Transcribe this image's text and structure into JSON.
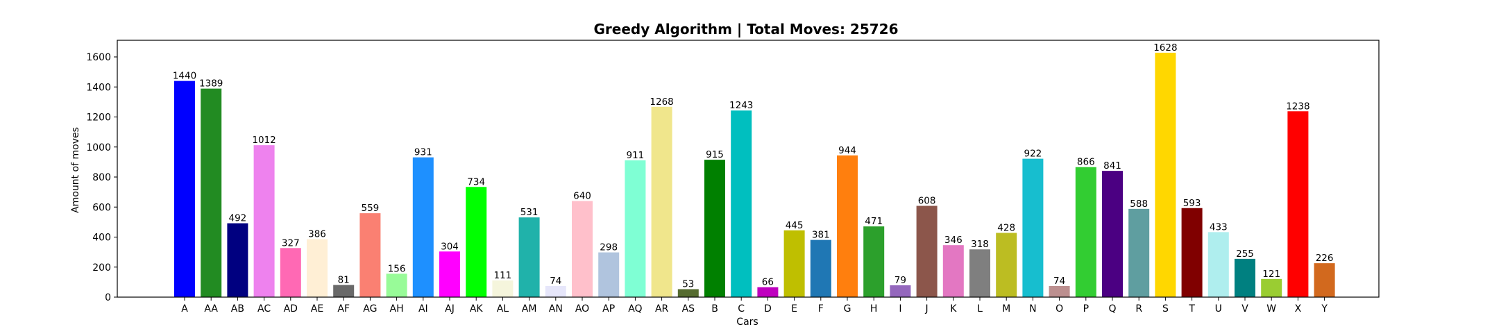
{
  "chart_data": {
    "type": "bar",
    "title": "Greedy Algorithm | Total Moves: 25726",
    "xlabel": "Cars",
    "ylabel": "Amount of moves",
    "ylim": [
      0,
      1700
    ],
    "yticks": [
      0,
      200,
      400,
      600,
      800,
      1000,
      1200,
      1400,
      1600
    ],
    "grid": false,
    "legend": "none",
    "categories": [
      "A",
      "AA",
      "AB",
      "AC",
      "AD",
      "AE",
      "AF",
      "AG",
      "AH",
      "AI",
      "AJ",
      "AK",
      "AL",
      "AM",
      "AN",
      "AO",
      "AP",
      "AQ",
      "AR",
      "AS",
      "B",
      "C",
      "D",
      "E",
      "F",
      "G",
      "H",
      "I",
      "J",
      "K",
      "L",
      "M",
      "N",
      "O",
      "P",
      "Q",
      "R",
      "S",
      "T",
      "U",
      "V",
      "W",
      "X",
      "Y"
    ],
    "values": [
      1440,
      1389,
      492,
      1012,
      327,
      386,
      81,
      559,
      156,
      931,
      304,
      734,
      111,
      531,
      74,
      640,
      298,
      911,
      1268,
      53,
      915,
      1243,
      66,
      445,
      381,
      944,
      471,
      79,
      608,
      346,
      318,
      428,
      922,
      74,
      866,
      841,
      588,
      1628,
      593,
      433,
      255,
      121,
      1238,
      226
    ],
    "colors": [
      "#0000ff",
      "#228b22",
      "#000080",
      "#ee82ee",
      "#ff69b4",
      "#ffefd5",
      "#696969",
      "#fa8072",
      "#98fb98",
      "#1e90ff",
      "#ff00ff",
      "#00ff00",
      "#f5f5dc",
      "#20b2aa",
      "#e6e6fa",
      "#ffc0cb",
      "#b0c4de",
      "#7fffd4",
      "#f0e68c",
      "#556b2f",
      "#008000",
      "#00bfbf",
      "#bf00bf",
      "#bfbf00",
      "#1f77b4",
      "#ff7f0e",
      "#2ca02c",
      "#9467bd",
      "#8c564b",
      "#e377c2",
      "#7f7f7f",
      "#bcbd22",
      "#17becf",
      "#bc8f8f",
      "#32cd32",
      "#4b0082",
      "#5f9ea0",
      "#ffd700",
      "#800000",
      "#afeeee",
      "#008080",
      "#9acd32",
      "#ff0000",
      "#d2691e"
    ]
  }
}
